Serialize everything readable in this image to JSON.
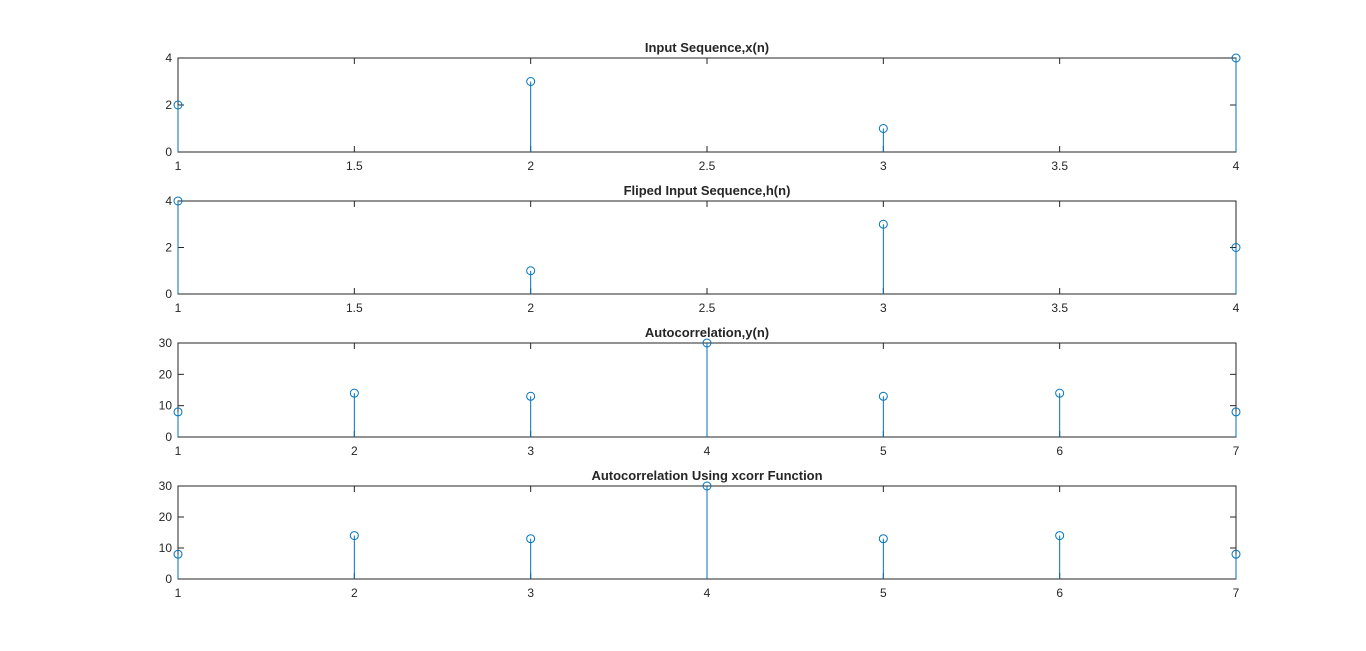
{
  "figure": {
    "background": "#ffffff",
    "axis_color": "#262626",
    "stem_color": "#0072BD"
  },
  "chart_data": [
    {
      "type": "stem",
      "title": "Input Sequence,x(n)",
      "x": [
        1,
        2,
        3,
        4
      ],
      "y": [
        2,
        3,
        1,
        4
      ],
      "xlim": [
        1,
        4
      ],
      "ylim": [
        0,
        4
      ],
      "xticks": [
        "1",
        "1.5",
        "2",
        "2.5",
        "3",
        "3.5",
        "4"
      ],
      "yticks": [
        "0",
        "2",
        "4"
      ],
      "grid": false
    },
    {
      "type": "stem",
      "title": "Fliped Input Sequence,h(n)",
      "x": [
        1,
        2,
        3,
        4
      ],
      "y": [
        4,
        1,
        3,
        2
      ],
      "xlim": [
        1,
        4
      ],
      "ylim": [
        0,
        4
      ],
      "xticks": [
        "1",
        "1.5",
        "2",
        "2.5",
        "3",
        "3.5",
        "4"
      ],
      "yticks": [
        "0",
        "2",
        "4"
      ],
      "grid": false
    },
    {
      "type": "stem",
      "title": "Autocorrelation,y(n)",
      "x": [
        1,
        2,
        3,
        4,
        5,
        6,
        7
      ],
      "y": [
        8,
        14,
        13,
        30,
        13,
        14,
        8
      ],
      "xlim": [
        1,
        7
      ],
      "ylim": [
        0,
        30
      ],
      "xticks": [
        "1",
        "2",
        "3",
        "4",
        "5",
        "6",
        "7"
      ],
      "yticks": [
        "0",
        "10",
        "20",
        "30"
      ],
      "grid": false
    },
    {
      "type": "stem",
      "title": "Autocorrelation Using xcorr Function",
      "x": [
        1,
        2,
        3,
        4,
        5,
        6,
        7
      ],
      "y": [
        8,
        14,
        13,
        30,
        13,
        14,
        8
      ],
      "xlim": [
        1,
        7
      ],
      "ylim": [
        0,
        30
      ],
      "xticks": [
        "1",
        "2",
        "3",
        "4",
        "5",
        "6",
        "7"
      ],
      "yticks": [
        "0",
        "10",
        "20",
        "30"
      ],
      "grid": false
    }
  ]
}
